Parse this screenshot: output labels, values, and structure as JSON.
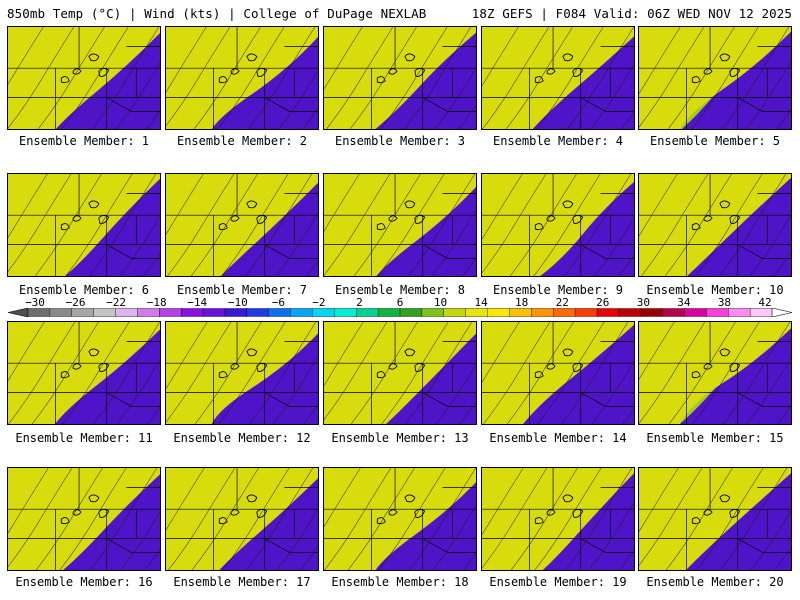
{
  "header": {
    "left": "850mb Temp (°C) | Wind (kts) | College of DuPage NEXLAB",
    "right": "18Z GEFS | F084 Valid: 06Z WED NOV 12 2025"
  },
  "panels": [
    {
      "label": "Ensemble Member: 1"
    },
    {
      "label": "Ensemble Member: 2"
    },
    {
      "label": "Ensemble Member: 3"
    },
    {
      "label": "Ensemble Member: 4"
    },
    {
      "label": "Ensemble Member: 5"
    },
    {
      "label": "Ensemble Member: 6"
    },
    {
      "label": "Ensemble Member: 7"
    },
    {
      "label": "Ensemble Member: 8"
    },
    {
      "label": "Ensemble Member: 9"
    },
    {
      "label": "Ensemble Member: 10"
    },
    {
      "label": "Ensemble Member: 11"
    },
    {
      "label": "Ensemble Member: 12"
    },
    {
      "label": "Ensemble Member: 13"
    },
    {
      "label": "Ensemble Member: 14"
    },
    {
      "label": "Ensemble Member: 15"
    },
    {
      "label": "Ensemble Member: 16"
    },
    {
      "label": "Ensemble Member: 17"
    },
    {
      "label": "Ensemble Member: 18"
    },
    {
      "label": "Ensemble Member: 19"
    },
    {
      "label": "Ensemble Member: 20"
    }
  ],
  "colorbar": {
    "labels": [
      "−30",
      "−26",
      "−22",
      "−18",
      "−14",
      "−10",
      "−6",
      "−2",
      "2",
      "6",
      "10",
      "14",
      "18",
      "22",
      "26",
      "30",
      "34",
      "38",
      "42"
    ],
    "colors": [
      "#6e6e6e",
      "#8a8a8a",
      "#a6a6a6",
      "#c4c4c4",
      "#e2b4ee",
      "#d27ae8",
      "#b440e6",
      "#8a10e6",
      "#6a10dc",
      "#3a18d8",
      "#1e3ce6",
      "#0a70f0",
      "#00a8f4",
      "#00d8f2",
      "#00eed4",
      "#00d294",
      "#10b440",
      "#34a020",
      "#7cc41a",
      "#c6d60c",
      "#e6e600",
      "#ffe800",
      "#ffc000",
      "#ff9600",
      "#ff6a00",
      "#ff3c00",
      "#e60000",
      "#bc0000",
      "#960000",
      "#b4004a",
      "#dc00a0",
      "#ff3cdc",
      "#ff8cf0",
      "#ffc8f8"
    ]
  }
}
